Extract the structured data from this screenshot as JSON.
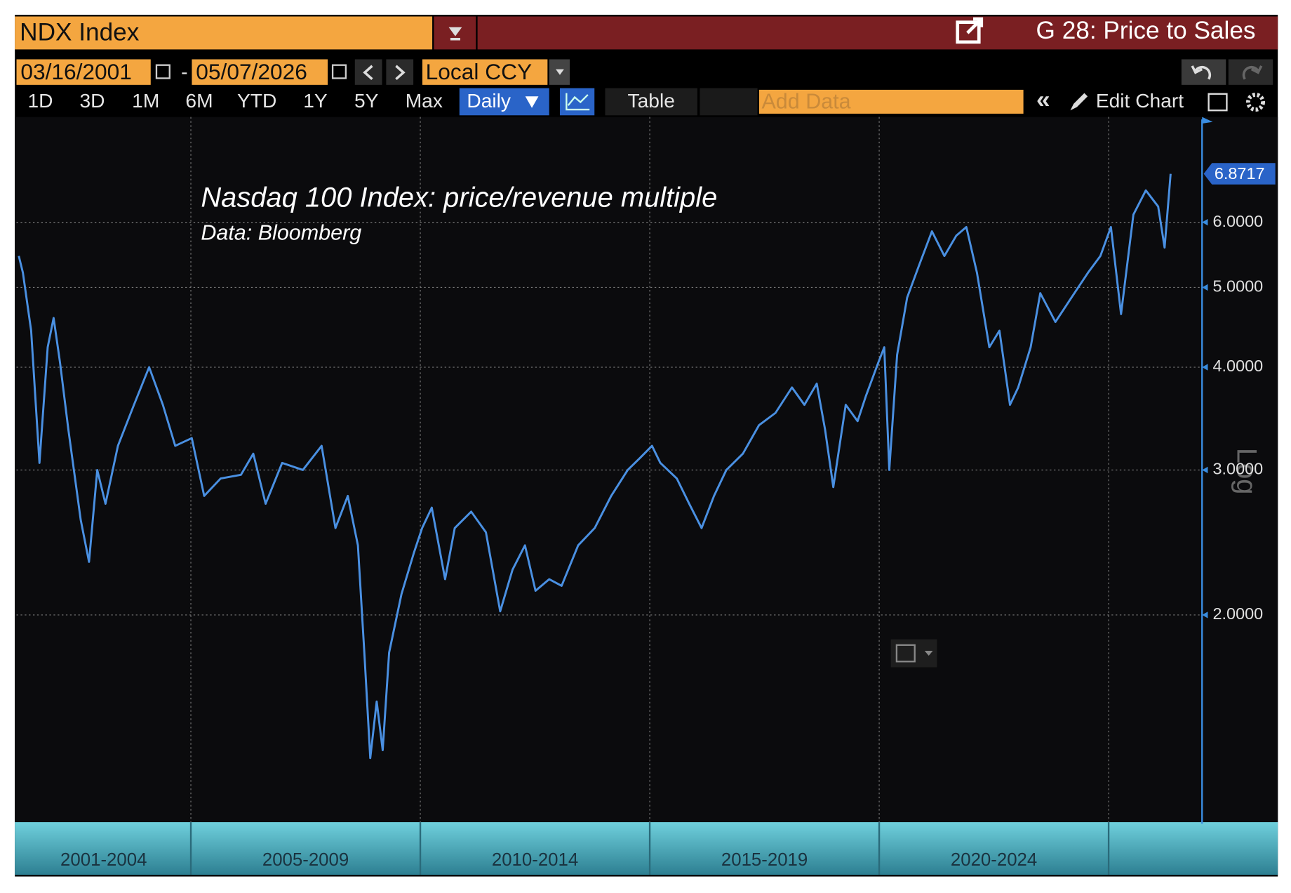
{
  "header": {
    "security": "NDX Index",
    "function": "G 28: Price to Sales"
  },
  "toolbar": {
    "start_date": "03/16/2001",
    "date_separator": "-",
    "end_date": "05/07/2026",
    "currency": "Local CCY",
    "ranges": [
      "1D",
      "3D",
      "1M",
      "6M",
      "YTD",
      "1Y",
      "5Y",
      "Max"
    ],
    "frequency": "Daily",
    "table": "Table",
    "add_data": "Add Data",
    "edit_chart": "Edit Chart"
  },
  "chart_data": {
    "type": "line",
    "title": "Nasdaq 100  Index: price/revenue multiple",
    "subtitle": "Data: Bloomberg",
    "color": "#4a90e2",
    "log_scale": true,
    "scale_label": "Log",
    "grid": true,
    "x": [
      2001.25,
      2001.34,
      2001.52,
      2001.7,
      2001.88,
      2002.01,
      2002.15,
      2002.33,
      2002.6,
      2002.78,
      2002.96,
      2003.14,
      2003.41,
      2003.76,
      2004.09,
      2004.39,
      2004.66,
      2005.02,
      2005.29,
      2005.65,
      2006.09,
      2006.36,
      2006.63,
      2006.99,
      2007.44,
      2007.85,
      2008.15,
      2008.42,
      2008.64,
      2008.78,
      2008.91,
      2009.05,
      2009.18,
      2009.32,
      2009.59,
      2009.86,
      2010.04,
      2010.25,
      2010.54,
      2010.75,
      2011.11,
      2011.43,
      2011.74,
      2012.01,
      2012.28,
      2012.51,
      2012.81,
      2013.08,
      2013.44,
      2013.8,
      2014.16,
      2014.52,
      2014.78,
      2015.05,
      2015.23,
      2015.59,
      2015.86,
      2016.13,
      2016.4,
      2016.67,
      2017.03,
      2017.38,
      2017.74,
      2018.1,
      2018.37,
      2018.64,
      2018.82,
      2019.0,
      2019.27,
      2019.53,
      2019.71,
      2019.98,
      2020.11,
      2020.22,
      2020.39,
      2020.61,
      2020.88,
      2021.15,
      2021.42,
      2021.68,
      2021.9,
      2022.13,
      2022.4,
      2022.62,
      2022.85,
      2023.03,
      2023.3,
      2023.51,
      2023.84,
      2024.19,
      2024.55,
      2024.82,
      2025.05,
      2025.27,
      2025.54,
      2025.81,
      2026.08,
      2026.22,
      2026.35
    ],
    "values": [
      5.46,
      5.21,
      4.43,
      3.06,
      4.23,
      4.59,
      4.05,
      3.36,
      2.61,
      2.32,
      3.0,
      2.73,
      3.21,
      3.6,
      4.0,
      3.6,
      3.21,
      3.28,
      2.79,
      2.93,
      2.96,
      3.14,
      2.73,
      3.06,
      3.0,
      3.21,
      2.55,
      2.79,
      2.43,
      1.8,
      1.34,
      1.57,
      1.37,
      1.8,
      2.12,
      2.38,
      2.55,
      2.7,
      2.21,
      2.55,
      2.67,
      2.52,
      2.02,
      2.27,
      2.43,
      2.14,
      2.21,
      2.17,
      2.43,
      2.55,
      2.79,
      3.0,
      3.1,
      3.21,
      3.06,
      2.93,
      2.73,
      2.55,
      2.79,
      3.0,
      3.14,
      3.4,
      3.52,
      3.78,
      3.6,
      3.82,
      3.36,
      2.86,
      3.6,
      3.44,
      3.69,
      4.05,
      4.23,
      3.0,
      4.14,
      4.86,
      5.34,
      5.85,
      5.46,
      5.78,
      5.92,
      5.21,
      4.23,
      4.43,
      3.6,
      3.78,
      4.23,
      4.92,
      4.54,
      4.86,
      5.21,
      5.46,
      5.92,
      4.64,
      6.13,
      6.56,
      6.27,
      5.59,
      6.8717
    ],
    "xlim": [
      2001.2,
      2027.0
    ],
    "xticks": [
      2005,
      2010,
      2015,
      2020,
      2025
    ],
    "periods": [
      "2001-2004",
      "2005-2009",
      "2010-2014",
      "2015-2019",
      "2020-2024"
    ],
    "ylim": [
      1.12,
      8.0
    ],
    "yticks": [
      {
        "value": 2,
        "label": "2.0000"
      },
      {
        "value": 3,
        "label": "3.0000"
      },
      {
        "value": 4,
        "label": "4.0000"
      },
      {
        "value": 5,
        "label": "5.0000"
      },
      {
        "value": 6,
        "label": "6.0000"
      }
    ]
  }
}
